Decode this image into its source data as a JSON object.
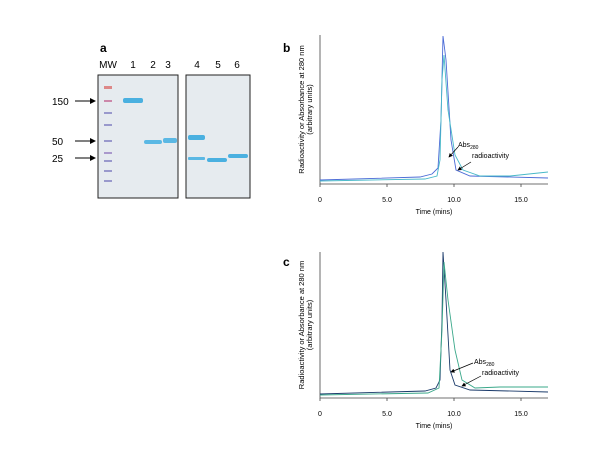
{
  "panels": [
    {
      "label": "a",
      "mw_header": "MW",
      "lanes": [
        "1",
        "2",
        "3",
        "4",
        "5",
        "6"
      ],
      "markers": [
        "150",
        "50",
        "25"
      ]
    },
    {
      "label": "b",
      "y_label": [
        "Radioactivity or Absorbance at 280 nm",
        "(arbitrary units)"
      ],
      "x_label": "Time (mins)",
      "x_ticks": [
        "0",
        "5.0",
        "10.0",
        "15.0"
      ],
      "abs": "Abs",
      "abs_sub": "280",
      "radio": "radioactivity"
    },
    {
      "label": "c",
      "y_label": [
        "Radioactivity or Absorbance at 280 nm",
        "(arbitrary units)"
      ],
      "x_label": "Time (mins)",
      "x_ticks": [
        "0",
        "5.0",
        "10.0",
        "15.0"
      ],
      "abs": "Abs",
      "abs_sub": "280",
      "radio": "radioactivity"
    }
  ]
}
